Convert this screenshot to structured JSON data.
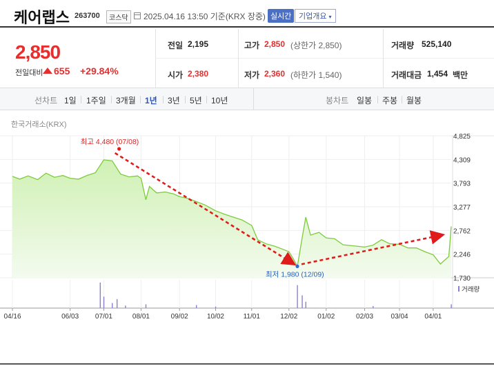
{
  "header": {
    "company_name": "케어랩스",
    "code": "263700",
    "market": "코스닥",
    "datetime": "2025.04.16 13:50",
    "basis": "기준(KRX 장중)",
    "realtime_label": "실시간",
    "overview_label": "기업개요"
  },
  "quote": {
    "price": "2,850",
    "change_label": "전일대비",
    "change_value": "655",
    "change_pct": "+29.84%",
    "prev_close_label": "전일",
    "prev_close": "2,195",
    "open_label": "시가",
    "open": "2,380",
    "high_label": "고가",
    "high": "2,850",
    "upper_limit": "(상한가 2,850)",
    "low_label": "저가",
    "low": "2,360",
    "lower_limit": "(하한가 1,540)",
    "volume_label": "거래량",
    "volume": "525,140",
    "amount_label": "거래대금",
    "amount": "1,454",
    "amount_unit": "백만"
  },
  "periods": {
    "line_label": "선차트",
    "items": [
      "1일",
      "1주일",
      "3개월",
      "1년",
      "3년",
      "5년",
      "10년"
    ],
    "active": "1년",
    "candle_label": "봉차트",
    "candle_items": [
      "일봉",
      "주봉",
      "월봉"
    ]
  },
  "colors": {
    "up": "#e62e2e",
    "accent": "#2b55c6",
    "line": "#7ccb3a",
    "fill": "#cdf0b0",
    "trend": "#e01b1b"
  },
  "chart_data": {
    "type": "area",
    "source_label": "한국거래소(KRX)",
    "ylim": [
      1730,
      4825
    ],
    "y_ticks": [
      "4,825",
      "4,309",
      "3,793",
      "3,277",
      "2,762",
      "2,246",
      "1,730"
    ],
    "x_tick_labels": [
      "04/16",
      "06/03",
      "07/01",
      "08/01",
      "09/02",
      "10/02",
      "11/01",
      "12/02",
      "01/02",
      "02/03",
      "03/04",
      "04/01"
    ],
    "x_tick_dates": [
      "2024-04-16",
      "2024-06-03",
      "2024-07-01",
      "2024-08-01",
      "2024-09-02",
      "2024-10-02",
      "2024-11-01",
      "2024-12-02",
      "2025-01-02",
      "2025-02-03",
      "2025-03-04",
      "2025-04-01"
    ],
    "high": {
      "label": "최고 4,480 (07/08)",
      "value": 4480,
      "date": "2024-07-08"
    },
    "low": {
      "label": "최저 1,980 (12/09)",
      "value": 1980,
      "date": "2024-12-09"
    },
    "series": [
      {
        "values": [
          [
            "2024-04-16",
            3940
          ],
          [
            "2024-04-22",
            3880
          ],
          [
            "2024-04-29",
            3950
          ],
          [
            "2024-05-07",
            3870
          ],
          [
            "2024-05-14",
            4010
          ],
          [
            "2024-05-21",
            3920
          ],
          [
            "2024-05-28",
            3960
          ],
          [
            "2024-06-03",
            3900
          ],
          [
            "2024-06-10",
            3880
          ],
          [
            "2024-06-17",
            3960
          ],
          [
            "2024-06-24",
            4020
          ],
          [
            "2024-07-01",
            4300
          ],
          [
            "2024-07-08",
            4280
          ],
          [
            "2024-07-15",
            3990
          ],
          [
            "2024-07-22",
            3930
          ],
          [
            "2024-07-29",
            3950
          ],
          [
            "2024-08-01",
            3900
          ],
          [
            "2024-08-05",
            3430
          ],
          [
            "2024-08-08",
            3720
          ],
          [
            "2024-08-14",
            3580
          ],
          [
            "2024-08-21",
            3600
          ],
          [
            "2024-08-28",
            3560
          ],
          [
            "2024-09-02",
            3500
          ],
          [
            "2024-09-09",
            3460
          ],
          [
            "2024-09-16",
            3390
          ],
          [
            "2024-09-23",
            3320
          ],
          [
            "2024-10-02",
            3190
          ],
          [
            "2024-10-10",
            3110
          ],
          [
            "2024-10-17",
            3050
          ],
          [
            "2024-10-24",
            2990
          ],
          [
            "2024-11-01",
            2870
          ],
          [
            "2024-11-06",
            2560
          ],
          [
            "2024-11-13",
            2470
          ],
          [
            "2024-11-20",
            2420
          ],
          [
            "2024-11-27",
            2350
          ],
          [
            "2024-12-02",
            2300
          ],
          [
            "2024-12-06",
            2130
          ],
          [
            "2024-12-09",
            1980
          ],
          [
            "2024-12-13",
            2600
          ],
          [
            "2024-12-16",
            3050
          ],
          [
            "2024-12-20",
            2660
          ],
          [
            "2024-12-27",
            2720
          ],
          [
            "2025-01-02",
            2600
          ],
          [
            "2025-01-09",
            2580
          ],
          [
            "2025-01-16",
            2450
          ],
          [
            "2025-01-23",
            2430
          ],
          [
            "2025-02-03",
            2400
          ],
          [
            "2025-02-10",
            2440
          ],
          [
            "2025-02-17",
            2560
          ],
          [
            "2025-02-24",
            2470
          ],
          [
            "2025-03-04",
            2460
          ],
          [
            "2025-03-11",
            2380
          ],
          [
            "2025-03-18",
            2380
          ],
          [
            "2025-03-25",
            2300
          ],
          [
            "2025-04-01",
            2230
          ],
          [
            "2025-04-07",
            2030
          ],
          [
            "2025-04-14",
            2195
          ],
          [
            "2025-04-16",
            2850
          ]
        ]
      }
    ],
    "volume_label": "거래량",
    "volume": {
      "values": [
        [
          "2024-06-28",
          1.0
        ],
        [
          "2024-07-01",
          0.45
        ],
        [
          "2024-07-08",
          0.2
        ],
        [
          "2024-07-12",
          0.35
        ],
        [
          "2024-07-19",
          0.1
        ],
        [
          "2024-08-05",
          0.15
        ],
        [
          "2024-09-16",
          0.12
        ],
        [
          "2024-10-02",
          0.06
        ],
        [
          "2024-12-09",
          0.9
        ],
        [
          "2024-12-13",
          0.5
        ],
        [
          "2024-12-16",
          0.25
        ],
        [
          "2025-02-10",
          0.08
        ],
        [
          "2025-04-16",
          0.15
        ]
      ]
    }
  }
}
